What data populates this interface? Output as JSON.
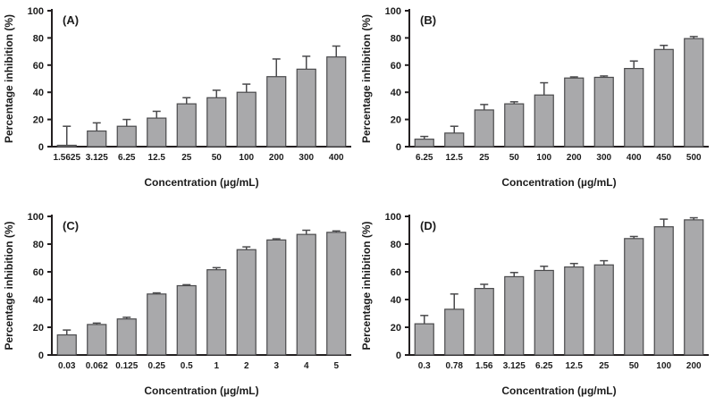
{
  "figure": {
    "background": "#ffffff"
  },
  "colors": {
    "bar_fill": "#a9a9ab",
    "bar_stroke": "#4a4a4c",
    "error_bar": "#4a4a4c",
    "axis": "#231f20",
    "text": "#1c1c1c"
  },
  "chart_data": [
    {
      "type": "bar",
      "panel_label": "(A)",
      "title": "",
      "xlabel": "Concentration (µg/mL)",
      "ylabel": "Percentage inhibition (%)",
      "ylim": [
        0,
        100
      ],
      "yticks": [
        0,
        20,
        40,
        60,
        80,
        100
      ],
      "grid": false,
      "legend": null,
      "error_direction": "up",
      "categories": [
        "1.5625",
        "3.125",
        "6.25",
        "12.5",
        "25",
        "50",
        "100",
        "200",
        "300",
        "400"
      ],
      "values": [
        1,
        11.5,
        15,
        21,
        31.5,
        36,
        40,
        51.5,
        57,
        66
      ],
      "errors": [
        14,
        6,
        5,
        5,
        4.5,
        5.5,
        6,
        13,
        9.5,
        8
      ]
    },
    {
      "type": "bar",
      "panel_label": "(B)",
      "title": "",
      "xlabel": "Concentration (µg/mL)",
      "ylabel": "Percentage inhibition (%)",
      "ylim": [
        0,
        100
      ],
      "yticks": [
        0,
        20,
        40,
        60,
        80,
        100
      ],
      "grid": false,
      "legend": null,
      "error_direction": "up",
      "categories": [
        "6.25",
        "12.5",
        "25",
        "50",
        "100",
        "200",
        "300",
        "400",
        "450",
        "500"
      ],
      "values": [
        5.5,
        10,
        27,
        31.5,
        38,
        50.5,
        51,
        57.5,
        71.5,
        79.5
      ],
      "errors": [
        2,
        5,
        4,
        1.5,
        9,
        0.8,
        1,
        5.5,
        3,
        1.5
      ]
    },
    {
      "type": "bar",
      "panel_label": "(C)",
      "title": "",
      "xlabel": "Concentration (µg/mL)",
      "ylabel": "Percentage inhibition (%)",
      "ylim": [
        0,
        100
      ],
      "yticks": [
        0,
        20,
        40,
        60,
        80,
        100
      ],
      "grid": false,
      "legend": null,
      "error_direction": "up",
      "categories": [
        "0.03",
        "0.062",
        "0.125",
        "0.25",
        "0.5",
        "1",
        "2",
        "3",
        "4",
        "5"
      ],
      "values": [
        14.5,
        22,
        26,
        44,
        50,
        61.5,
        76,
        83,
        87,
        88.5
      ],
      "errors": [
        3.5,
        1,
        1.2,
        0.8,
        0.7,
        1.5,
        2,
        0.8,
        3,
        1
      ]
    },
    {
      "type": "bar",
      "panel_label": "(D)",
      "title": "",
      "xlabel": "Concentration (µg/mL)",
      "ylabel": "Percentage inhibition (%)",
      "ylim": [
        0,
        100
      ],
      "yticks": [
        0,
        20,
        40,
        60,
        80,
        100
      ],
      "grid": false,
      "legend": null,
      "error_direction": "up",
      "categories": [
        "0.3",
        "0.78",
        "1.56",
        "3.125",
        "6.25",
        "12.5",
        "25",
        "50",
        "100",
        "200"
      ],
      "values": [
        22.5,
        33,
        48,
        56.5,
        61,
        63.5,
        65,
        84,
        92.5,
        97.5
      ],
      "errors": [
        6,
        11,
        3,
        3,
        3,
        2.5,
        3,
        1.5,
        5.5,
        1.5
      ]
    }
  ]
}
